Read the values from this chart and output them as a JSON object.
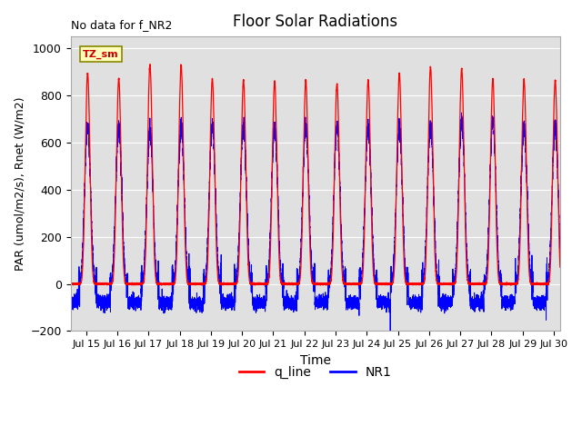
{
  "title": "Floor Solar Radiations",
  "xlabel": "Time",
  "ylabel": "PAR (umol/m2/s), Rnet (W/m2)",
  "annotation_text": "No data for f_NR2",
  "legend_box_text": "TZ_sm",
  "ylim": [
    -200,
    1050
  ],
  "xlim_days": [
    14.5,
    30.2
  ],
  "background_color": "#e0e0e0",
  "q_line_color": "red",
  "NR1_color": "blue",
  "legend_q_line": "q_line",
  "legend_NR1": "NR1",
  "yticks": [
    -200,
    0,
    200,
    400,
    600,
    800,
    1000
  ],
  "xtick_labels": [
    "Jul 15",
    "Jul 16",
    "Jul 17",
    "Jul 18",
    "Jul 19",
    "Jul 20",
    "Jul 21",
    "Jul 22",
    "Jul 23",
    "Jul 24",
    "Jul 25",
    "Jul 26",
    "Jul 27",
    "Jul 28",
    "Jul 29",
    "Jul 30"
  ],
  "xtick_days": [
    15,
    16,
    17,
    18,
    19,
    20,
    21,
    22,
    23,
    24,
    25,
    26,
    27,
    28,
    29,
    30
  ],
  "peak_q_values": [
    895,
    870,
    930,
    930,
    870,
    865,
    860,
    865,
    850,
    865,
    895,
    920,
    915,
    868,
    868,
    865
  ],
  "peak_nr1_values": [
    670,
    660,
    650,
    670,
    665,
    668,
    668,
    670,
    668,
    660,
    665,
    668,
    690,
    690,
    668,
    665
  ],
  "night_nr1_mean": -80,
  "night_nr1_std": 15,
  "figsize": [
    6.4,
    4.8
  ],
  "dpi": 100
}
